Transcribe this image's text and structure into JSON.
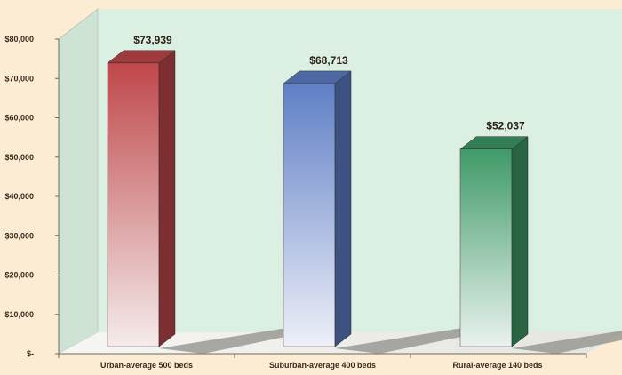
{
  "chart_data": {
    "type": "bar",
    "title": "",
    "xlabel": "",
    "ylabel": "",
    "ylim": [
      0,
      80000
    ],
    "y_ticks": [
      0,
      10000,
      20000,
      30000,
      40000,
      50000,
      60000,
      70000,
      80000
    ],
    "y_tick_labels": [
      "$-",
      "$10,000",
      "$20,000",
      "$30,000",
      "$40,000",
      "$50,000",
      "$60,000",
      "$70,000",
      "$80,000"
    ],
    "grid": false,
    "legend": "none",
    "categories": [
      "Urban-average 500 beds",
      "Suburban-average 400 beds",
      "Rural-average 140 beds"
    ],
    "values": [
      73939,
      68713,
      52037
    ],
    "data_labels": [
      "$73,939",
      "$68,713",
      "$52,037"
    ],
    "colors": [
      "#c0474a",
      "#5f7fc6",
      "#3f9a68"
    ]
  }
}
